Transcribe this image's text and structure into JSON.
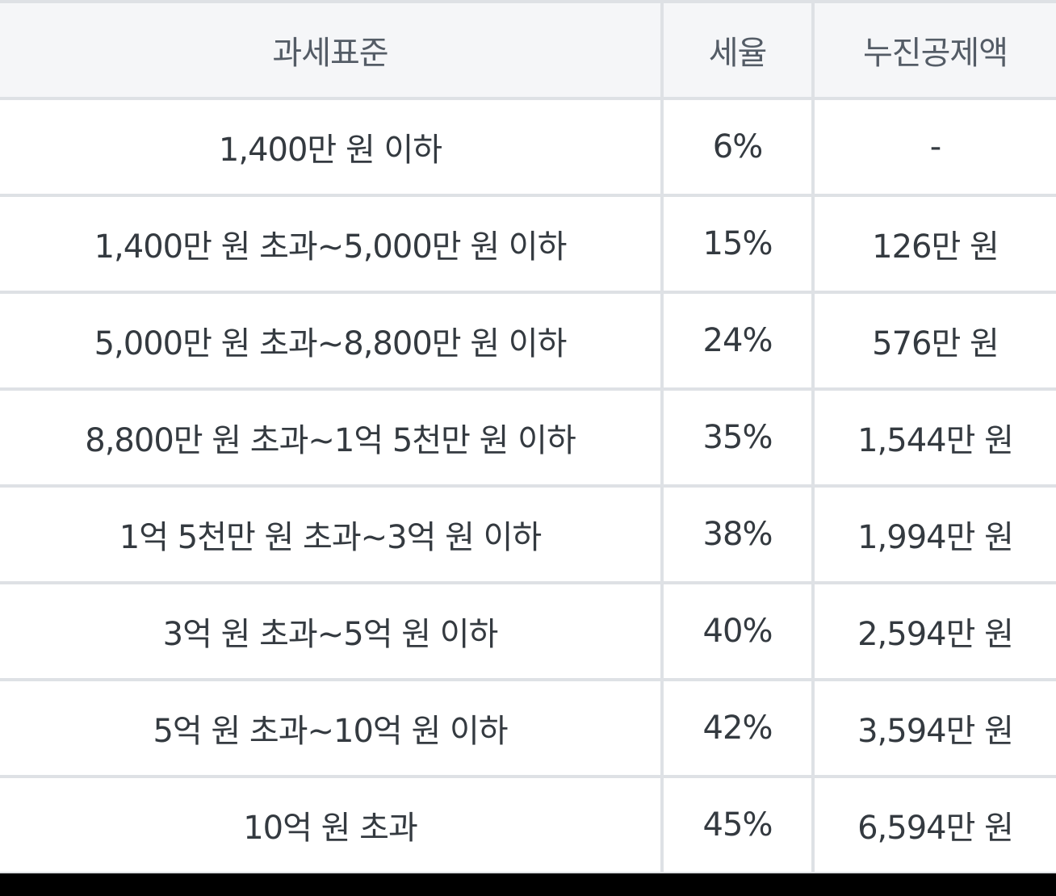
{
  "table": {
    "headers": [
      "과세표준",
      "세율",
      "누진공제액"
    ],
    "rows": [
      {
        "bracket": "1,400만 원 이하",
        "rate": "6%",
        "deduction": "-"
      },
      {
        "bracket": "1,400만 원 초과~5,000만 원 이하",
        "rate": "15%",
        "deduction": "126만 원"
      },
      {
        "bracket": "5,000만 원 초과~8,800만 원 이하",
        "rate": "24%",
        "deduction": "576만 원"
      },
      {
        "bracket": "8,800만 원 초과~1억 5천만 원 이하",
        "rate": "35%",
        "deduction": "1,544만 원"
      },
      {
        "bracket": "1억 5천만 원 초과~3억 원 이하",
        "rate": "38%",
        "deduction": "1,994만 원"
      },
      {
        "bracket": "3억 원 초과~5억 원 이하",
        "rate": "40%",
        "deduction": "2,594만 원"
      },
      {
        "bracket": "5억 원 초과~10억 원 이하",
        "rate": "42%",
        "deduction": "3,594만 원"
      },
      {
        "bracket": "10억 원 초과",
        "rate": "45%",
        "deduction": "6,594만 원"
      }
    ]
  },
  "colors": {
    "border": "#dee1e5",
    "header_bg": "#f5f6f8",
    "header_text": "#545c66",
    "cell_text": "#343a40",
    "cell_bg": "#ffffff",
    "frame": "#000000"
  }
}
